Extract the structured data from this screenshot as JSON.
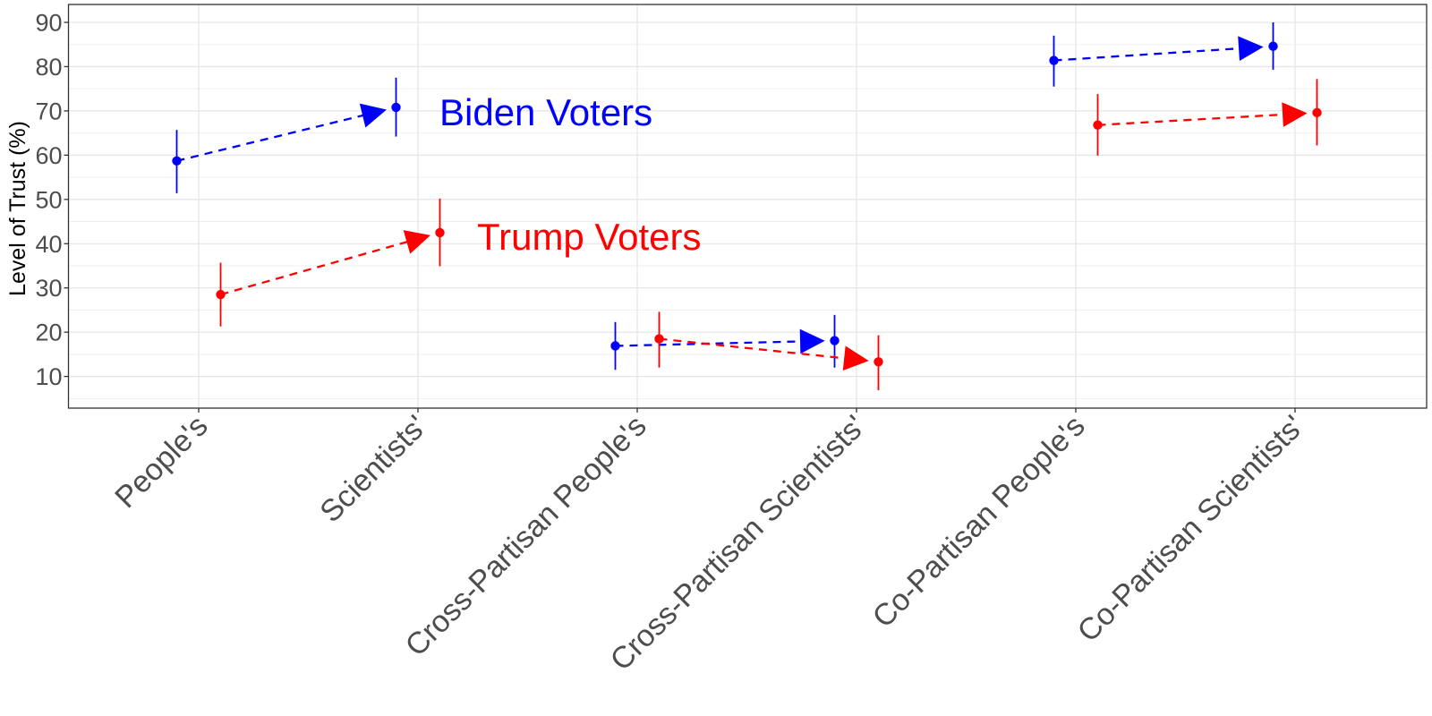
{
  "chart_data": {
    "type": "scatter",
    "subtype": "dot-and-errorbar with dashed arrows (dumbbell)",
    "title": "",
    "xlabel": "",
    "ylabel": "Level of Trust (%)",
    "ylim": [
      3.5,
      94
    ],
    "yticks": [
      10,
      20,
      30,
      40,
      50,
      60,
      70,
      80,
      90
    ],
    "grid": true,
    "legend": "none (inline text annotations)",
    "categories": [
      "People's",
      "Scientists'",
      "Cross-Partisan People's",
      "Cross-Partisan Scientists'",
      "Co-Partisan People's",
      "Co-Partisan Scientists'"
    ],
    "series": [
      {
        "name": "Biden Voters",
        "color": "#0000ff",
        "dodge": -1,
        "values": [
          58.7,
          70.8,
          16.9,
          18.1,
          81.4,
          84.6
        ],
        "lower": [
          51.4,
          64.2,
          11.5,
          12.0,
          75.5,
          79.3
        ],
        "upper": [
          65.7,
          77.5,
          22.3,
          23.9,
          87.0,
          90.0
        ],
        "arrows": [
          [
            0,
            1
          ],
          [
            2,
            3
          ],
          [
            4,
            5
          ]
        ]
      },
      {
        "name": "Trump Voters",
        "color": "#ff0000",
        "dodge": 1,
        "values": [
          28.5,
          42.5,
          18.5,
          13.3,
          66.8,
          69.6
        ],
        "lower": [
          21.3,
          34.9,
          12.0,
          6.9,
          59.9,
          62.2
        ],
        "upper": [
          35.7,
          50.2,
          24.6,
          19.3,
          73.8,
          77.2
        ],
        "arrows": [
          [
            0,
            1
          ],
          [
            2,
            3
          ],
          [
            4,
            5
          ]
        ]
      }
    ],
    "annotations": [
      {
        "text": "Biden Voters",
        "color": "#0000ff",
        "x_category_index": 1.1,
        "y": 70
      },
      {
        "text": "Trump Voters",
        "color": "#ff0000",
        "x_category_index": 1.27,
        "y": 42
      }
    ]
  },
  "axes": {
    "y_title": "Level of Trust (%)"
  },
  "labels": {
    "biden": "Biden Voters",
    "trump": "Trump Voters"
  }
}
